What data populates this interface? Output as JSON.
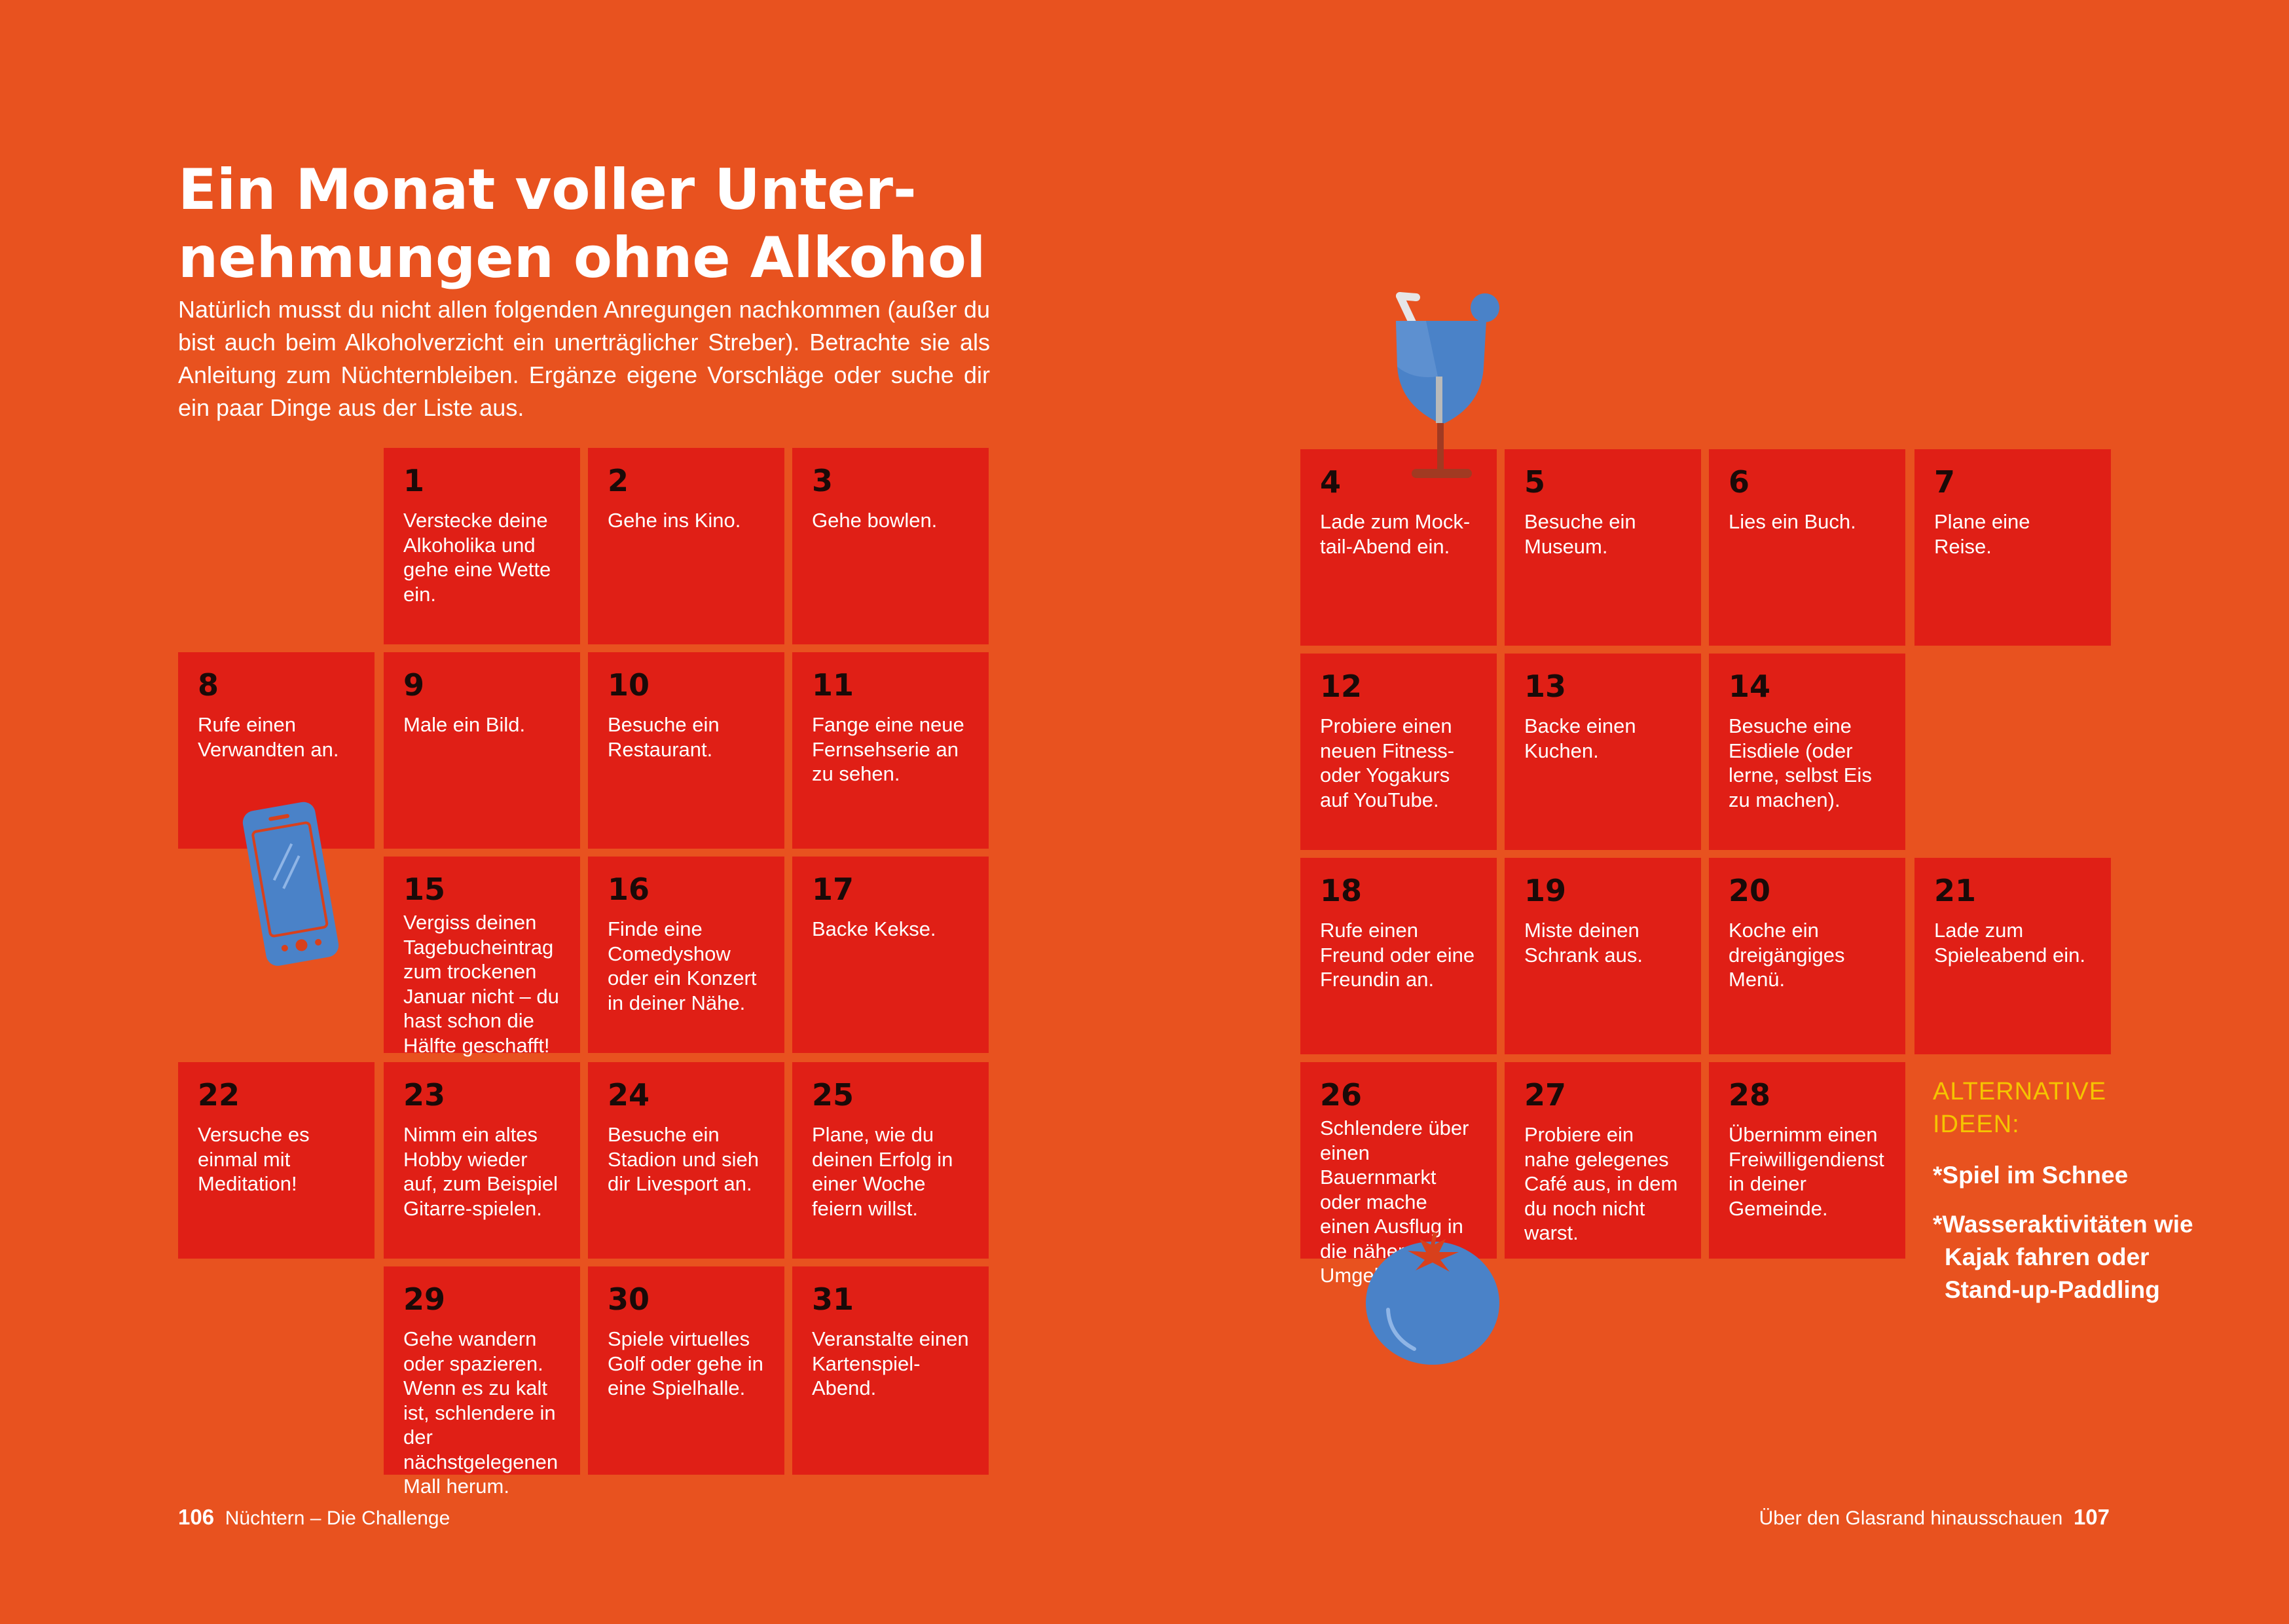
{
  "title": {
    "line1": "Ein Monat voller Unter-",
    "line2": "nehmungen ohne Alkohol"
  },
  "intro": "Natürlich musst du nicht allen folgenden Anregungen nachkommen (außer du bist auch beim Alkoholverzicht ein unerträglicher Streber). Betrachte sie als Anleitung zum Nüchternbleiben. Ergänze eigene Vorschläge oder suche dir ein paar Dinge aus der Liste aus.",
  "days": [
    {
      "num": "1",
      "text": "Verstecke deine Alkoholika und gehe eine Wette ein."
    },
    {
      "num": "2",
      "text": "Gehe ins Kino."
    },
    {
      "num": "3",
      "text": "Gehe bowlen."
    },
    {
      "num": "4",
      "text": "Lade zum Mock-tail-Abend ein."
    },
    {
      "num": "5",
      "text": "Besuche ein Museum."
    },
    {
      "num": "6",
      "text": "Lies ein Buch."
    },
    {
      "num": "7",
      "text": "Plane eine Reise."
    },
    {
      "num": "8",
      "text": "Rufe einen Verwandten an."
    },
    {
      "num": "9",
      "text": "Male ein Bild."
    },
    {
      "num": "10",
      "text": "Besuche ein Restaurant."
    },
    {
      "num": "11",
      "text": "Fange eine neue Fernsehserie an zu sehen."
    },
    {
      "num": "12",
      "text": "Probiere einen neuen Fitness- oder Yogakurs auf YouTube."
    },
    {
      "num": "13",
      "text": "Backe einen Kuchen."
    },
    {
      "num": "14",
      "text": "Besuche eine Eisdiele (oder lerne, selbst Eis zu machen)."
    },
    {
      "num": "15",
      "text": "Vergiss deinen Tagebucheintrag zum trockenen Januar nicht – du hast schon die Hälfte geschafft!"
    },
    {
      "num": "16",
      "text": "Finde eine Comedyshow oder ein Konzert in deiner Nähe."
    },
    {
      "num": "17",
      "text": "Backe Kekse."
    },
    {
      "num": "18",
      "text": "Rufe einen Freund oder eine Freundin an."
    },
    {
      "num": "19",
      "text": "Miste deinen Schrank aus."
    },
    {
      "num": "20",
      "text": "Koche ein dreigängiges Menü."
    },
    {
      "num": "21",
      "text": "Lade zum Spieleabend ein."
    },
    {
      "num": "22",
      "text": "Versuche es einmal mit Meditation!"
    },
    {
      "num": "23",
      "text": "Nimm ein altes Hobby wieder auf, zum Beispiel Gitarre-spielen."
    },
    {
      "num": "24",
      "text": "Besuche ein Stadion und sieh dir Livesport an."
    },
    {
      "num": "25",
      "text": "Plane, wie du deinen Erfolg in einer Woche feiern willst."
    },
    {
      "num": "26",
      "text": "Schlendere über einen Bauernmarkt oder mache einen Ausflug in die nähere Umgebung."
    },
    {
      "num": "27",
      "text": "Probiere ein nahe gelegenes Café aus, in dem du noch nicht warst."
    },
    {
      "num": "28",
      "text": "Übernimm einen Freiwilligendienst in deiner Gemeinde."
    },
    {
      "num": "29",
      "text": "Gehe wandern oder spazieren. Wenn es zu kalt ist, schlendere in der nächstgelegenen Mall herum."
    },
    {
      "num": "30",
      "text": "Spiele virtuelles Golf oder gehe in eine Spielhalle."
    },
    {
      "num": "31",
      "text": "Veranstalte einen Kartenspiel-Abend."
    }
  ],
  "alternatives": {
    "heading": "ALTERNATIVE IDEEN:",
    "items": [
      "*Spiel im Schnee",
      "*Wasseraktivitäten wie Kajak fahren oder Stand-up-Paddling"
    ]
  },
  "footer": {
    "left_page": "106",
    "left_title": "Nüchtern – Die Challenge",
    "right_title": "Über den Glasrand hinausschauen",
    "right_page": "107"
  },
  "colors": {
    "background": "#e8521f",
    "cell": "#e01f16",
    "accent_yellow": "#f5c400",
    "icon_blue": "#4a82c8"
  },
  "icons": [
    "cocktail-glass-icon",
    "smartphone-icon",
    "tomato-icon"
  ]
}
